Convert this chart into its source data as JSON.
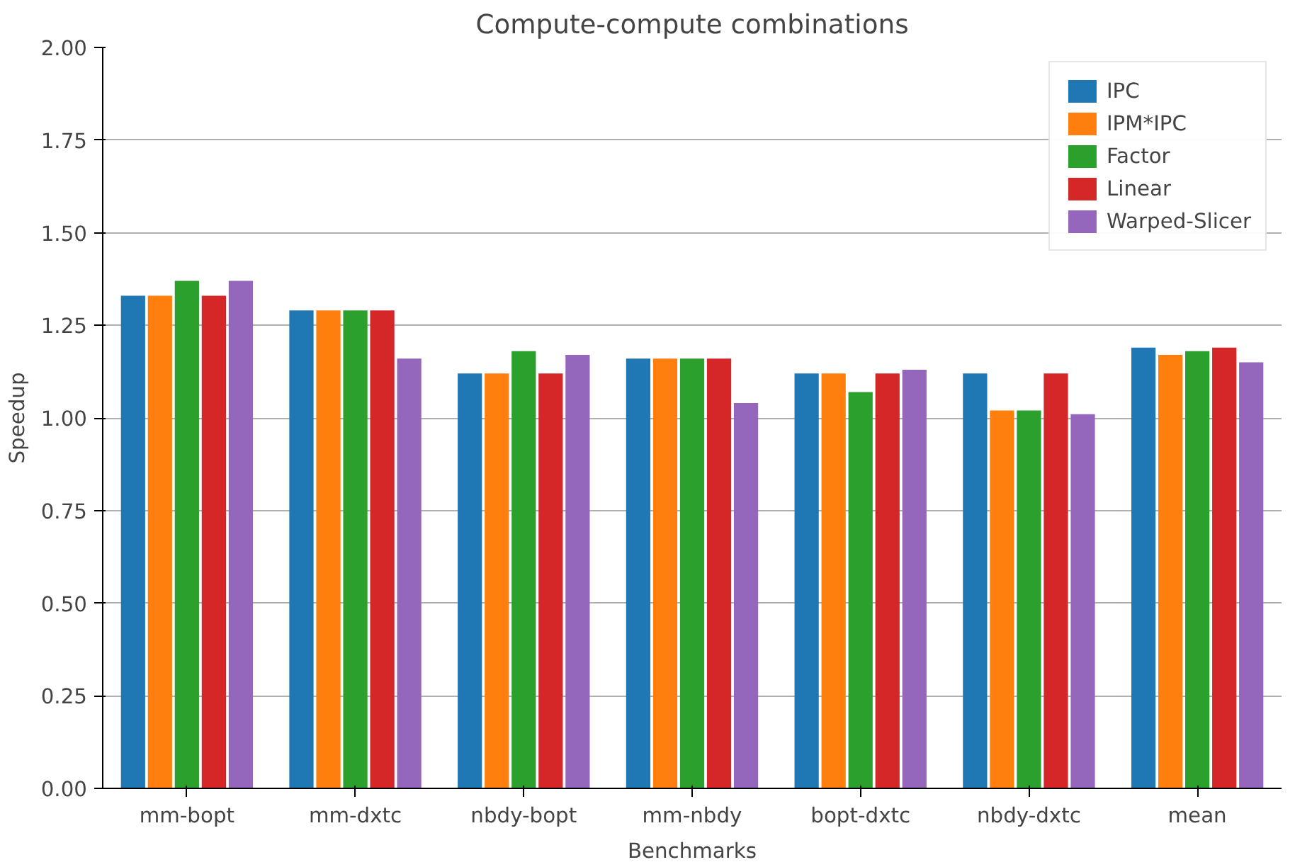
{
  "chart_data": {
    "type": "bar",
    "title": "Compute-compute combinations",
    "xlabel": "Benchmarks",
    "ylabel": "Speedup",
    "categories": [
      "mm-bopt",
      "mm-dxtc",
      "nbdy-bopt",
      "mm-nbdy",
      "bopt-dxtc",
      "nbdy-dxtc",
      "mean"
    ],
    "series": [
      {
        "name": "IPC",
        "color": "#1f77b4",
        "values": [
          1.33,
          1.29,
          1.12,
          1.16,
          1.12,
          1.12,
          1.19
        ]
      },
      {
        "name": "IPM*IPC",
        "color": "#ff7f0e",
        "values": [
          1.33,
          1.29,
          1.12,
          1.16,
          1.12,
          1.02,
          1.17
        ]
      },
      {
        "name": "Factor",
        "color": "#2ca02c",
        "values": [
          1.37,
          1.29,
          1.18,
          1.16,
          1.07,
          1.02,
          1.18
        ]
      },
      {
        "name": "Linear",
        "color": "#d62728",
        "values": [
          1.33,
          1.29,
          1.12,
          1.16,
          1.12,
          1.12,
          1.19
        ]
      },
      {
        "name": "Warped-Slicer",
        "color": "#9467bd",
        "values": [
          1.37,
          1.16,
          1.17,
          1.04,
          1.13,
          1.01,
          1.15
        ]
      }
    ],
    "ylim": [
      0,
      2
    ],
    "yticks": [
      {
        "value": 0,
        "label": "0.00"
      },
      {
        "value": 0.25,
        "label": "0.25"
      },
      {
        "value": 0.5,
        "label": "0.50"
      },
      {
        "value": 0.75,
        "label": "0.75"
      },
      {
        "value": 1,
        "label": "1.00"
      },
      {
        "value": 1.25,
        "label": "1.25"
      },
      {
        "value": 1.5,
        "label": "1.50"
      },
      {
        "value": 1.75,
        "label": "1.75"
      },
      {
        "value": 2,
        "label": "2.00"
      }
    ],
    "grid": "y",
    "legend": "top right"
  }
}
